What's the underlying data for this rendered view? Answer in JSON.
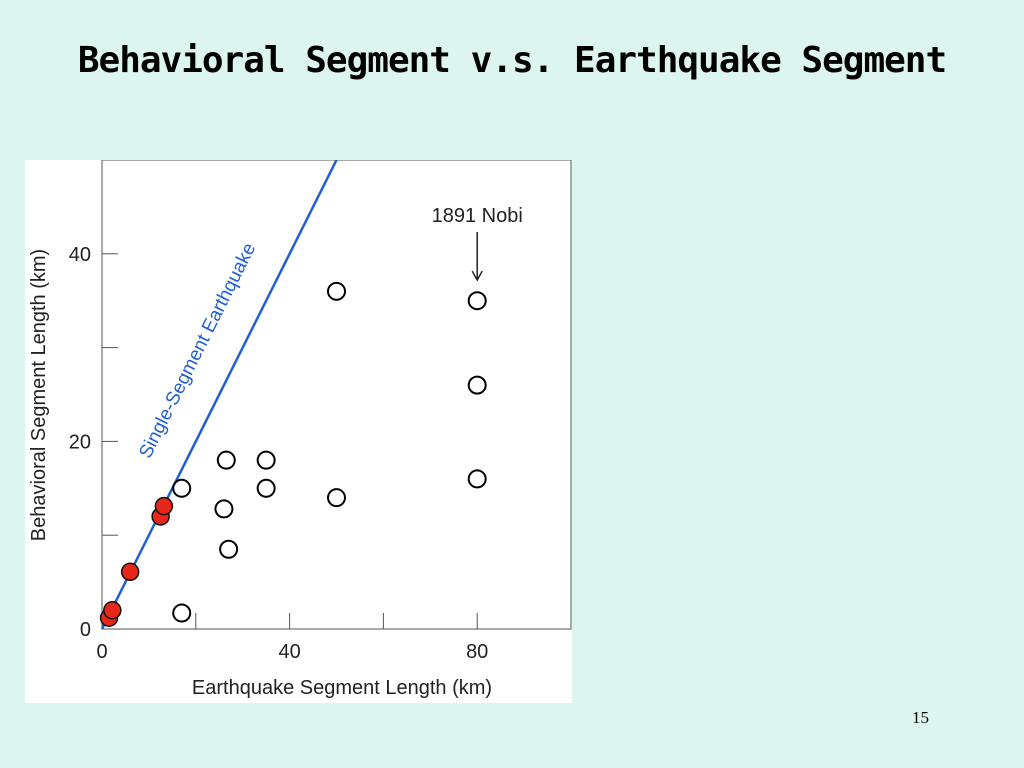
{
  "slide": {
    "title": "Behavioral Segment v.s. Earthquake Segment",
    "page_number": "15"
  },
  "chart_data": {
    "type": "scatter",
    "title": "",
    "xlabel": "Earthquake Segment Length  (km)",
    "ylabel": "Behavioral Segment Length  (km)",
    "xlim": [
      0,
      100
    ],
    "ylim": [
      0,
      50
    ],
    "x_ticks": [
      0,
      20,
      40,
      60,
      80,
      100
    ],
    "x_tick_labels": [
      "0",
      "",
      "40",
      "",
      "80",
      ""
    ],
    "y_ticks": [
      0,
      10,
      20,
      30,
      40,
      50
    ],
    "y_tick_labels": [
      "0",
      "",
      "20",
      "",
      "40",
      ""
    ],
    "grid": false,
    "reference_line": {
      "label": "Single-Segment Earthquake",
      "x": [
        0,
        50
      ],
      "y": [
        0,
        50
      ],
      "color": "#1f5fd0"
    },
    "annotation": {
      "text": "1891 Nobi",
      "x": 80,
      "y": 37.2
    },
    "series": [
      {
        "marker": "filled",
        "color": "#e8261a",
        "points": [
          {
            "x": 1.5,
            "y": 1.2
          },
          {
            "x": 2.2,
            "y": 2.0
          },
          {
            "x": 6.0,
            "y": 6.1
          },
          {
            "x": 12.5,
            "y": 12.0
          },
          {
            "x": 13.2,
            "y": 13.1
          }
        ]
      },
      {
        "marker": "open",
        "color": "#000000",
        "points": [
          {
            "x": 17.0,
            "y": 15.0
          },
          {
            "x": 17.0,
            "y": 1.7
          },
          {
            "x": 26.5,
            "y": 18.0
          },
          {
            "x": 26.0,
            "y": 12.8
          },
          {
            "x": 27.0,
            "y": 8.5
          },
          {
            "x": 35.0,
            "y": 18.0
          },
          {
            "x": 35.0,
            "y": 15.0
          },
          {
            "x": 50.0,
            "y": 36.0
          },
          {
            "x": 50.0,
            "y": 14.0
          },
          {
            "x": 80.0,
            "y": 35.0
          },
          {
            "x": 80.0,
            "y": 26.0
          },
          {
            "x": 80.0,
            "y": 16.0
          }
        ]
      }
    ]
  }
}
